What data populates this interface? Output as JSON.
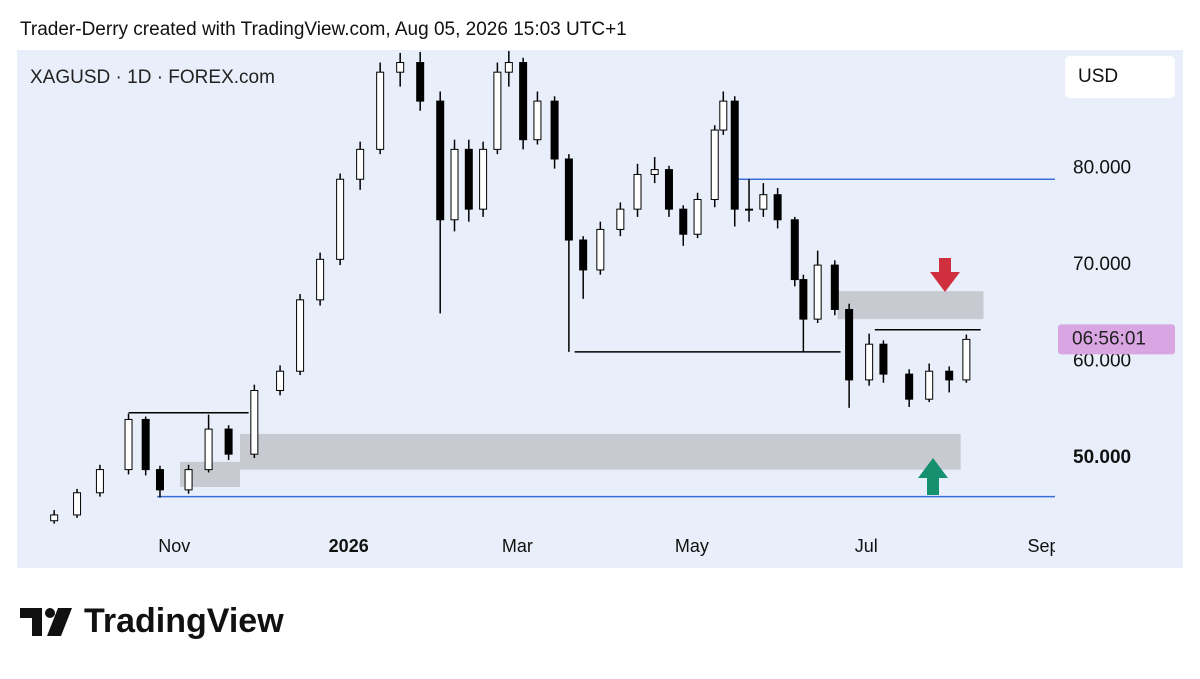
{
  "header": {
    "credit": "Trader-Derry created with TradingView.com, Aug 05, 2026 15:03 UTC+1"
  },
  "chart_data": {
    "type": "candlestick",
    "title": "XAGUSD · 1D · FOREX.com",
    "currency": "USD",
    "countdown": "06:56:01",
    "color": "#000000",
    "xlim": [
      -55,
      308
    ],
    "ylim": [
      38.6,
      92.3
    ],
    "xticks": [
      {
        "value": 0,
        "label": "Nov"
      },
      {
        "value": 61,
        "label": "2026"
      },
      {
        "value": 120,
        "label": "Mar"
      },
      {
        "value": 181,
        "label": "May"
      },
      {
        "value": 242,
        "label": "Jul"
      },
      {
        "value": 304,
        "label": "Sep"
      }
    ],
    "yticks": [
      {
        "value": 80,
        "label": "80.000"
      },
      {
        "value": 70,
        "label": "70.000"
      },
      {
        "value": 60,
        "label": "60.000"
      },
      {
        "value": 50,
        "label": "50.000"
      }
    ],
    "x": [
      -42,
      -34,
      -26,
      -16,
      -10,
      -5,
      5,
      12,
      19,
      28,
      37,
      44,
      51,
      58,
      65,
      72,
      79,
      86,
      93,
      98,
      103,
      108,
      113,
      117,
      122,
      127,
      133,
      138,
      143,
      149,
      156,
      162,
      168,
      173,
      178,
      183,
      189,
      192,
      196,
      201,
      206,
      211,
      217,
      220,
      225,
      231,
      236,
      243,
      248,
      257,
      264,
      271,
      277
    ],
    "open": [
      43.5,
      44.1,
      46.4,
      48.8,
      54.0,
      48.8,
      46.7,
      48.8,
      53.0,
      50.4,
      57.0,
      59.0,
      66.4,
      70.6,
      78.9,
      82.0,
      90.0,
      91.0,
      87.0,
      74.7,
      82.0,
      75.8,
      82.0,
      90.0,
      91.0,
      83.0,
      87.0,
      81.0,
      72.6,
      69.5,
      73.7,
      75.8,
      79.4,
      79.9,
      75.8,
      73.2,
      76.8,
      84.0,
      87.0,
      75.8,
      75.8,
      77.3,
      74.7,
      68.5,
      64.4,
      70.0,
      65.4,
      58.1,
      61.8,
      58.7,
      56.1,
      59.0,
      58.1
    ],
    "high": [
      44.6,
      46.8,
      49.3,
      54.6,
      54.3,
      49.2,
      49.3,
      54.5,
      53.4,
      57.6,
      59.6,
      67.0,
      71.3,
      79.5,
      82.8,
      91.0,
      92.0,
      92.1,
      88.0,
      83.0,
      83.0,
      82.8,
      91.0,
      92.2,
      91.5,
      88.0,
      87.5,
      81.5,
      73.0,
      74.5,
      76.5,
      80.5,
      81.2,
      80.3,
      76.2,
      77.5,
      84.5,
      88.0,
      87.5,
      78.9,
      78.5,
      78.0,
      75.0,
      69.0,
      71.5,
      70.5,
      66.0,
      62.9,
      62.2,
      59.2,
      59.8,
      59.5,
      62.8
    ],
    "low": [
      43.2,
      43.8,
      46.0,
      48.3,
      48.2,
      45.9,
      46.3,
      48.5,
      49.8,
      50.0,
      56.5,
      58.6,
      65.8,
      70.0,
      77.8,
      81.5,
      88.5,
      86.0,
      65.0,
      73.5,
      74.5,
      75.0,
      81.5,
      88.5,
      82.0,
      82.5,
      80.0,
      61.0,
      66.5,
      69.0,
      73.0,
      75.0,
      78.5,
      75.0,
      72.0,
      72.8,
      76.0,
      83.5,
      74.0,
      74.5,
      75.0,
      73.8,
      67.8,
      61.0,
      64.0,
      64.8,
      55.2,
      57.5,
      57.8,
      55.3,
      55.8,
      56.8,
      57.8
    ],
    "close": [
      44.1,
      46.4,
      48.8,
      54.0,
      48.8,
      46.7,
      48.8,
      53.0,
      50.4,
      57.0,
      59.0,
      66.4,
      70.6,
      78.9,
      82.0,
      90.0,
      91.0,
      87.0,
      74.7,
      82.0,
      75.8,
      82.0,
      90.0,
      91.0,
      83.0,
      87.0,
      81.0,
      72.6,
      69.5,
      73.7,
      75.8,
      79.4,
      79.9,
      75.8,
      73.2,
      76.8,
      84.0,
      87.0,
      75.8,
      75.8,
      77.3,
      74.7,
      68.5,
      64.4,
      70.0,
      65.4,
      58.1,
      61.8,
      58.7,
      56.1,
      59.0,
      58.1,
      62.3
    ],
    "hlines": [
      {
        "price": 78.9,
        "from": 197,
        "to": 308,
        "color": "#3a6fd8"
      },
      {
        "price": 46.0,
        "from": -6,
        "to": 308,
        "color": "#3a6fd8"
      },
      {
        "price": 54.7,
        "from": -16,
        "to": 26,
        "color": "#000000"
      },
      {
        "price": 61.0,
        "from": 140,
        "to": 233,
        "color": "#000000"
      },
      {
        "price": 63.3,
        "from": 245,
        "to": 282,
        "color": "#000000"
      }
    ],
    "zones": [
      {
        "top": 67.3,
        "bottom": 64.4,
        "from": 232,
        "to": 283
      },
      {
        "top": 52.5,
        "bottom": 48.8,
        "from": 23,
        "to": 275
      },
      {
        "top": 49.6,
        "bottom": 47.0,
        "from": 2,
        "to": 23
      }
    ]
  },
  "footer": {
    "brand": "TradingView"
  }
}
